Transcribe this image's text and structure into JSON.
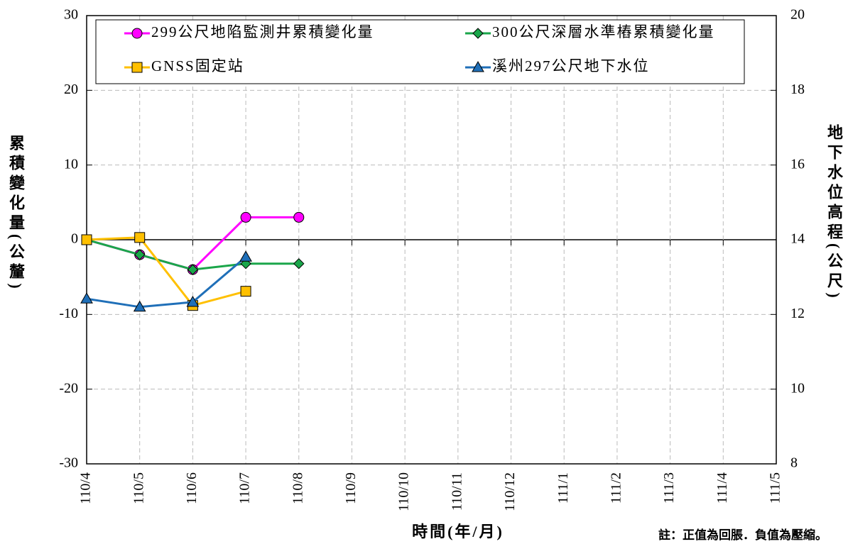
{
  "chart_data": {
    "type": "line",
    "x_label": "時間(年/月)",
    "y_label": "累積變化量(公釐)",
    "y2_label": "地下水位高程(公尺)",
    "annotation": "註：正值為回脹．負值為壓縮。",
    "categories": [
      "110/4",
      "110/5",
      "110/6",
      "110/7",
      "110/8",
      "110/9",
      "110/10",
      "110/11",
      "110/12",
      "111/1",
      "111/2",
      "111/3",
      "111/4",
      "111/5"
    ],
    "ylim": [
      -30,
      30
    ],
    "yticks": [
      -30,
      -20,
      -10,
      0,
      10,
      20,
      30
    ],
    "y2lim": [
      8,
      20
    ],
    "y2ticks": [
      8,
      10,
      12,
      14,
      16,
      18,
      20
    ],
    "grid": true,
    "series": [
      {
        "name": "299公尺地陷監測井累積變化量",
        "color": "#ff00ff",
        "marker": "circle",
        "values": [
          0,
          -2,
          -4,
          3,
          3,
          null,
          null,
          null,
          null,
          null,
          null,
          null,
          null,
          null
        ]
      },
      {
        "name": "300公尺深層水準樁累積變化量",
        "color": "#1aa64a",
        "marker": "diamond",
        "values": [
          0,
          -2,
          -4,
          -3.2,
          -3.2,
          null,
          null,
          null,
          null,
          null,
          null,
          null,
          null,
          null
        ]
      },
      {
        "name": "GNSS固定站",
        "color": "#ffc000",
        "marker": "square",
        "values": [
          0,
          0.3,
          -8.8,
          -6.9,
          null,
          null,
          null,
          null,
          null,
          null,
          null,
          null,
          null,
          null
        ]
      },
      {
        "name": "溪州297公尺地下水位",
        "color": "#1f6fb8",
        "marker": "triangle",
        "axis": "y2",
        "values": [
          12.42,
          12.2,
          12.33,
          13.54,
          null,
          null,
          null,
          null,
          null,
          null,
          null,
          null,
          null,
          null
        ]
      }
    ]
  }
}
